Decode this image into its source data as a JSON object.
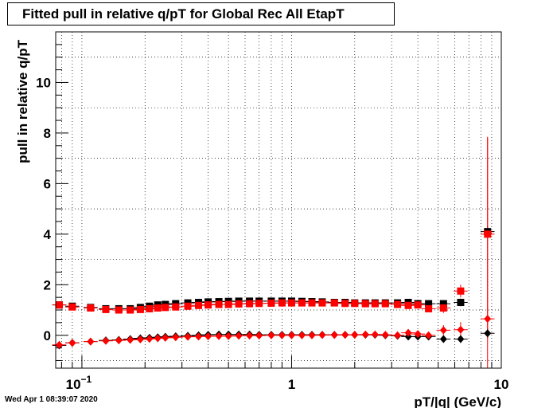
{
  "title": "Fitted pull in relative q/pT for Global Rec All EtapT",
  "timestamp": "Wed Apr  1 08:39:07 2020",
  "chart_data": {
    "type": "scatter",
    "title": "Fitted pull in relative q/pT for Global Rec All EtapT",
    "xlabel": "pT/|q| (GeV/c)",
    "ylabel": "pull in relative q/pT",
    "x_scale": "log",
    "xlim": [
      0.075,
      10
    ],
    "ylim": [
      -1.3,
      12
    ],
    "grid": true,
    "x_tick_labels": [
      {
        "value": 0.1,
        "base": "10",
        "exp": "−1"
      },
      {
        "value": 1,
        "base": "1",
        "exp": ""
      },
      {
        "value": 10,
        "base": "10",
        "exp": ""
      }
    ],
    "y_tick_labels": [
      {
        "value": 0,
        "label": "0"
      },
      {
        "value": 2,
        "label": "2"
      },
      {
        "value": 4,
        "label": "4"
      },
      {
        "value": 6,
        "label": "6"
      },
      {
        "value": 8,
        "label": "8"
      },
      {
        "value": 10,
        "label": "10"
      }
    ],
    "series": [
      {
        "marker": "square",
        "color": "#000000",
        "x": [
          0.078,
          0.09,
          0.11,
          0.13,
          0.15,
          0.17,
          0.19,
          0.21,
          0.23,
          0.25,
          0.28,
          0.32,
          0.36,
          0.4,
          0.45,
          0.5,
          0.56,
          0.63,
          0.7,
          0.8,
          0.9,
          1.0,
          1.12,
          1.25,
          1.4,
          1.6,
          1.8,
          2.0,
          2.25,
          2.5,
          2.8,
          3.2,
          3.6,
          4.0,
          4.5,
          5.3,
          6.4,
          8.6
        ],
        "y": [
          1.2,
          1.15,
          1.1,
          1.05,
          1.05,
          1.05,
          1.1,
          1.15,
          1.2,
          1.22,
          1.25,
          1.28,
          1.3,
          1.32,
          1.33,
          1.34,
          1.35,
          1.35,
          1.35,
          1.35,
          1.35,
          1.35,
          1.34,
          1.33,
          1.32,
          1.3,
          1.3,
          1.28,
          1.28,
          1.28,
          1.28,
          1.28,
          1.3,
          1.25,
          1.25,
          1.25,
          1.3,
          4.1
        ],
        "yerr": [
          0.03,
          0.03,
          0.03,
          0.03,
          0.03,
          0.03,
          0.03,
          0.03,
          0.03,
          0.03,
          0.03,
          0.03,
          0.03,
          0.03,
          0.03,
          0.03,
          0.03,
          0.03,
          0.03,
          0.03,
          0.03,
          0.03,
          0.03,
          0.03,
          0.03,
          0.03,
          0.03,
          0.03,
          0.03,
          0.03,
          0.04,
          0.05,
          0.06,
          0.07,
          0.08,
          0.1,
          0.15,
          0.2
        ]
      },
      {
        "marker": "diamond",
        "color": "#000000",
        "x": [
          0.078,
          0.09,
          0.11,
          0.13,
          0.15,
          0.17,
          0.19,
          0.21,
          0.23,
          0.25,
          0.28,
          0.32,
          0.36,
          0.4,
          0.45,
          0.5,
          0.56,
          0.63,
          0.7,
          0.8,
          0.9,
          1.0,
          1.12,
          1.25,
          1.4,
          1.6,
          1.8,
          2.0,
          2.25,
          2.5,
          2.8,
          3.2,
          3.6,
          4.0,
          4.5,
          5.3,
          6.4,
          8.6
        ],
        "y": [
          -0.4,
          -0.3,
          -0.25,
          -0.2,
          -0.18,
          -0.15,
          -0.12,
          -0.1,
          -0.08,
          -0.06,
          -0.04,
          -0.02,
          0.0,
          0.02,
          0.03,
          0.03,
          0.03,
          0.03,
          0.02,
          0.02,
          0.02,
          0.02,
          0.02,
          0.02,
          0.02,
          0.02,
          0.02,
          0.02,
          0.02,
          0.02,
          0.0,
          -0.02,
          -0.05,
          -0.05,
          -0.05,
          -0.15,
          -0.15,
          0.08
        ],
        "yerr": [
          0.03,
          0.03,
          0.03,
          0.03,
          0.03,
          0.03,
          0.03,
          0.03,
          0.03,
          0.03,
          0.03,
          0.03,
          0.03,
          0.03,
          0.03,
          0.03,
          0.03,
          0.03,
          0.03,
          0.03,
          0.03,
          0.03,
          0.03,
          0.03,
          0.03,
          0.03,
          0.03,
          0.03,
          0.03,
          0.03,
          0.04,
          0.05,
          0.06,
          0.07,
          0.08,
          0.1,
          0.15,
          0.2
        ]
      },
      {
        "marker": "square",
        "color": "#ff0000",
        "x": [
          0.078,
          0.09,
          0.11,
          0.13,
          0.15,
          0.17,
          0.19,
          0.21,
          0.23,
          0.25,
          0.28,
          0.32,
          0.36,
          0.4,
          0.45,
          0.5,
          0.56,
          0.63,
          0.7,
          0.8,
          0.9,
          1.0,
          1.12,
          1.25,
          1.4,
          1.6,
          1.8,
          2.0,
          2.25,
          2.5,
          2.8,
          3.2,
          3.6,
          4.0,
          4.5,
          5.3,
          6.4,
          8.6
        ],
        "y": [
          1.2,
          1.12,
          1.08,
          1.02,
          1.0,
          1.0,
          1.02,
          1.05,
          1.08,
          1.1,
          1.12,
          1.15,
          1.18,
          1.2,
          1.22,
          1.22,
          1.24,
          1.25,
          1.26,
          1.27,
          1.28,
          1.28,
          1.28,
          1.28,
          1.28,
          1.28,
          1.26,
          1.26,
          1.25,
          1.25,
          1.25,
          1.22,
          1.18,
          1.2,
          1.05,
          1.08,
          1.75,
          4.0
        ],
        "yerr": [
          0.03,
          0.03,
          0.03,
          0.03,
          0.03,
          0.03,
          0.03,
          0.03,
          0.03,
          0.03,
          0.03,
          0.03,
          0.03,
          0.03,
          0.03,
          0.03,
          0.03,
          0.03,
          0.03,
          0.03,
          0.03,
          0.03,
          0.03,
          0.03,
          0.03,
          0.03,
          0.03,
          0.03,
          0.03,
          0.03,
          0.04,
          0.06,
          0.08,
          0.1,
          0.12,
          0.2,
          0.25,
          3.8
        ]
      },
      {
        "marker": "diamond",
        "color": "#ff0000",
        "x": [
          0.078,
          0.09,
          0.11,
          0.13,
          0.15,
          0.17,
          0.19,
          0.21,
          0.23,
          0.25,
          0.28,
          0.32,
          0.36,
          0.4,
          0.45,
          0.5,
          0.56,
          0.63,
          0.7,
          0.8,
          0.9,
          1.0,
          1.12,
          1.25,
          1.4,
          1.6,
          1.8,
          2.0,
          2.25,
          2.5,
          2.8,
          3.2,
          3.6,
          4.0,
          4.5,
          5.3,
          6.4,
          8.6
        ],
        "y": [
          -0.38,
          -0.3,
          -0.25,
          -0.22,
          -0.2,
          -0.18,
          -0.16,
          -0.14,
          -0.12,
          -0.1,
          -0.08,
          -0.06,
          -0.05,
          -0.04,
          -0.03,
          -0.03,
          -0.02,
          -0.01,
          -0.01,
          0.0,
          0.0,
          0.0,
          0.0,
          0.0,
          0.01,
          0.01,
          0.02,
          0.02,
          0.03,
          0.03,
          0.02,
          0.0,
          0.1,
          0.05,
          0.0,
          0.2,
          0.22,
          0.65
        ],
        "yerr": [
          0.03,
          0.03,
          0.03,
          0.03,
          0.03,
          0.03,
          0.03,
          0.03,
          0.03,
          0.03,
          0.03,
          0.03,
          0.03,
          0.03,
          0.03,
          0.03,
          0.03,
          0.03,
          0.03,
          0.03,
          0.03,
          0.03,
          0.03,
          0.03,
          0.03,
          0.03,
          0.03,
          0.03,
          0.03,
          0.03,
          0.04,
          0.06,
          0.08,
          0.1,
          0.12,
          0.2,
          0.3,
          7.2
        ]
      }
    ]
  }
}
